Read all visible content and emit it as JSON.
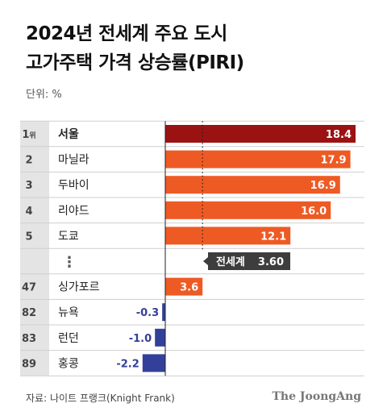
{
  "title_line1": "2024년 전세계 주요 도시",
  "title_line2": "고가주택 가격 상승률(PIRI)",
  "unit_label": "단위: %",
  "source": "자료: 나이트 프랭크(Knight Frank)",
  "brand": "The JoongAng",
  "rank_suffix": "위",
  "colors": {
    "top": "#9b1212",
    "positive": "#ee5a24",
    "negative": "#33409a",
    "rank_bg": "#e4e4e4",
    "divider": "#cfcfcf",
    "callout_bg": "#3d3d3d"
  },
  "chart_data": {
    "type": "bar",
    "orientation": "horizontal",
    "average_label": "전세계",
    "average_value": 3.6,
    "average_text": "3.60",
    "ellipsis": "⋮",
    "rows": [
      {
        "rank": "1",
        "city": "서울",
        "value": 18.4,
        "text": "18.4"
      },
      {
        "rank": "2",
        "city": "마닐라",
        "value": 17.9,
        "text": "17.9"
      },
      {
        "rank": "3",
        "city": "두바이",
        "value": 16.9,
        "text": "16.9"
      },
      {
        "rank": "4",
        "city": "리야드",
        "value": 16.0,
        "text": "16.0"
      },
      {
        "rank": "5",
        "city": "도쿄",
        "value": 12.1,
        "text": "12.1"
      },
      {
        "rank": "47",
        "city": "싱가포르",
        "value": 3.6,
        "text": "3.6"
      },
      {
        "rank": "82",
        "city": "뉴욕",
        "value": -0.3,
        "text": "-0.3"
      },
      {
        "rank": "83",
        "city": "런던",
        "value": -1.0,
        "text": "-1.0"
      },
      {
        "rank": "89",
        "city": "홍콩",
        "value": -2.2,
        "text": "-2.2"
      }
    ]
  }
}
